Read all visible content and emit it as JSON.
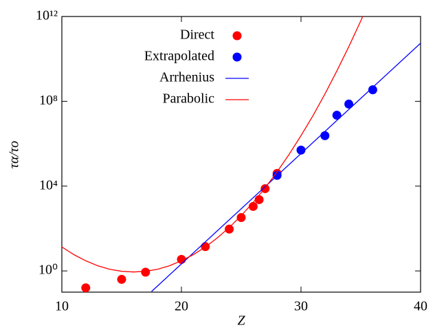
{
  "chart_data": {
    "type": "scatter",
    "xlabel": "Z",
    "ylabel": "τα/τo",
    "xlim": [
      10,
      40
    ],
    "xticks": [
      10,
      20,
      30,
      40
    ],
    "ylim": [
      0.1,
      1000000000000
    ],
    "yscale": "log",
    "yticks": [
      {
        "value": 1,
        "label": "10⁰"
      },
      {
        "value": 10000,
        "label": "10⁴"
      },
      {
        "value": 100000000,
        "label": "10⁸"
      },
      {
        "value": 1000000000000,
        "label": "10¹²"
      }
    ],
    "legend": "upper left",
    "series": [
      {
        "name": "Direct",
        "type": "scatter",
        "color": "#ff0000",
        "x": [
          12,
          15,
          17,
          20,
          22,
          24,
          25,
          26,
          26.5,
          27,
          28
        ],
        "values": [
          0.16,
          0.4,
          0.87,
          3.5,
          14,
          94,
          330,
          1100,
          2300,
          7600,
          40000
        ]
      },
      {
        "name": "Extrapolated",
        "type": "scatter",
        "color": "#0000ff",
        "x": [
          28,
          30,
          32,
          33,
          34,
          36
        ],
        "values": [
          32000,
          500000,
          2400000,
          22000000,
          74000000,
          350000000
        ]
      },
      {
        "name": "Arrhenius",
        "type": "line",
        "color": "#0000ff",
        "x": [
          17.5,
          40
        ],
        "values": [
          0.107,
          55000000000
        ]
      },
      {
        "name": "Parabolic",
        "type": "line",
        "color": "#ff0000",
        "x": [
          10,
          11,
          12,
          13,
          14,
          15,
          16,
          17,
          18,
          19,
          20,
          21,
          22,
          23,
          24,
          25,
          26,
          27,
          28,
          29,
          30,
          31,
          32,
          33,
          34,
          35,
          36
        ],
        "values": [
          13.5,
          5.9,
          3.0,
          1.76,
          1.2,
          0.96,
          0.89,
          0.96,
          1.2,
          1.76,
          3.0,
          5.9,
          13.5,
          36,
          112,
          405,
          1700,
          8300,
          47000,
          310000,
          2400000,
          21000000,
          220000000,
          2700000000,
          38000000000,
          620000000000,
          12000000000000
        ]
      }
    ]
  }
}
